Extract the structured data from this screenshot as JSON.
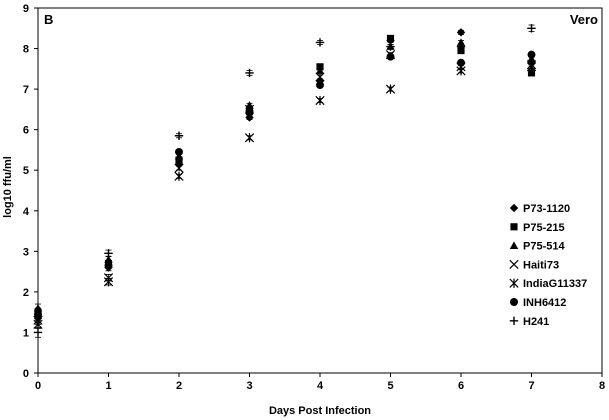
{
  "chart_data": {
    "type": "scatter",
    "panel_label": "B",
    "cell_line": "Vero",
    "xlabel": "Days Post Infection",
    "ylabel": "log10 ffu/ml",
    "xlim": [
      0,
      8
    ],
    "ylim": [
      0,
      9
    ],
    "x_ticks": [
      0,
      1,
      2,
      3,
      4,
      5,
      6,
      7,
      8
    ],
    "y_ticks": [
      0,
      1,
      2,
      3,
      4,
      5,
      6,
      7,
      8,
      9
    ],
    "grid": false,
    "legend_position": "right",
    "x": [
      0,
      1,
      2,
      3,
      4,
      5,
      6,
      7
    ],
    "series": [
      {
        "name": "P73-1120",
        "marker": "diamond",
        "values": [
          1.35,
          2.6,
          5.15,
          6.3,
          7.2,
          8.2,
          8.4,
          7.65
        ],
        "errors": [
          0.1,
          0.08,
          0.05,
          0.05,
          0.05,
          0.05,
          0.05,
          0.05
        ]
      },
      {
        "name": "P75-215",
        "marker": "square",
        "values": [
          1.5,
          2.7,
          5.25,
          6.45,
          7.55,
          8.25,
          7.95,
          7.4
        ],
        "errors": [
          0.1,
          0.08,
          0.05,
          0.05,
          0.05,
          0.05,
          0.05,
          0.05
        ]
      },
      {
        "name": "P75-514",
        "marker": "triangle",
        "values": [
          1.6,
          2.8,
          5.35,
          6.6,
          7.45,
          8.05,
          8.15,
          7.75
        ],
        "errors": [
          0.1,
          0.08,
          0.05,
          0.05,
          0.05,
          0.05,
          0.05,
          0.05
        ]
      },
      {
        "name": "Haiti73",
        "marker": "x",
        "values": [
          1.3,
          2.35,
          5.05,
          6.5,
          7.3,
          7.85,
          7.55,
          7.6
        ],
        "errors": [
          0.1,
          0.08,
          0.05,
          0.05,
          0.05,
          0.05,
          0.05,
          0.05
        ]
      },
      {
        "name": "IndiaG11337",
        "marker": "asterisk",
        "values": [
          1.2,
          2.25,
          4.85,
          5.8,
          6.72,
          7.0,
          7.45,
          7.55
        ],
        "errors": [
          0.1,
          0.08,
          0.05,
          0.05,
          0.05,
          0.05,
          0.05,
          0.05
        ]
      },
      {
        "name": "INH6412",
        "marker": "circle",
        "values": [
          1.45,
          2.65,
          5.45,
          6.45,
          7.1,
          7.8,
          7.65,
          7.85
        ],
        "errors": [
          0.1,
          0.08,
          0.05,
          0.05,
          0.05,
          0.05,
          0.05,
          0.05
        ]
      },
      {
        "name": "H241",
        "marker": "plus",
        "values": [
          1.0,
          2.95,
          5.85,
          7.4,
          8.15,
          8.05,
          8.05,
          8.5
        ],
        "errors": [
          0.12,
          0.08,
          0.05,
          0.06,
          0.05,
          0.05,
          0.05,
          0.08
        ]
      }
    ]
  }
}
